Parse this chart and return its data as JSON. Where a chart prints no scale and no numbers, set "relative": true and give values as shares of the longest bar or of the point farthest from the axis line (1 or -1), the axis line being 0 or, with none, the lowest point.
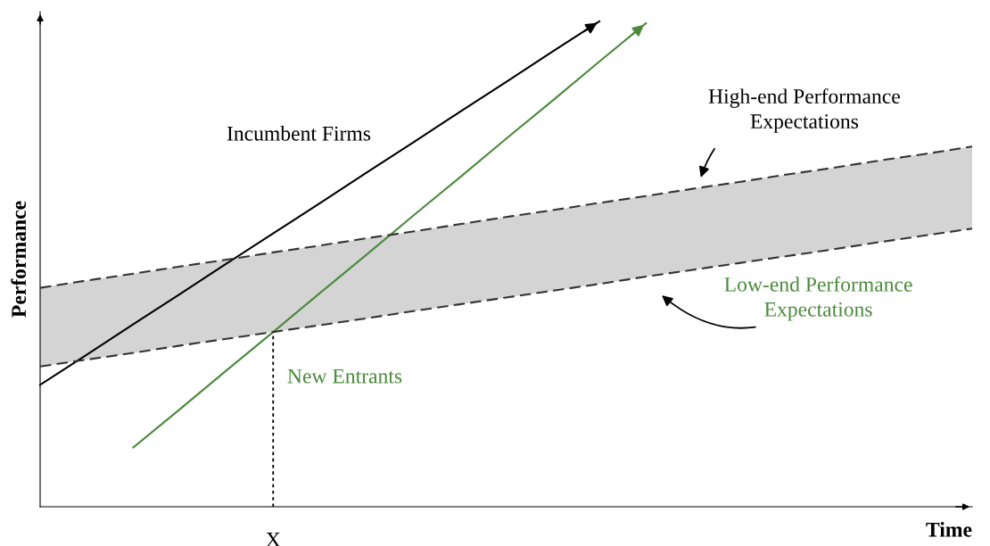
{
  "chart_data": {
    "type": "line",
    "relative": true,
    "xlabel": "Time",
    "ylabel": "Performance",
    "categories": [
      null,
      null,
      null,
      null,
      null,
      null,
      null,
      null,
      null,
      null,
      null,
      null,
      null,
      null,
      null,
      null,
      null,
      null,
      null,
      null,
      null
    ],
    "series": [
      {
        "name": "Incumbent Firms",
        "color": "#000000",
        "line_style": "solid",
        "values": [
          0.251,
          0.313,
          0.376,
          0.438,
          0.501,
          0.563,
          0.625,
          0.688,
          0.75,
          0.813,
          0.875,
          0.938,
          1.0,
          null,
          null,
          null,
          null,
          null,
          null,
          null,
          null
        ]
      },
      {
        "name": "New Entrants",
        "color": "#4a8a3a",
        "line_style": "solid",
        "values": [
          null,
          null,
          0.122,
          0.201,
          0.281,
          0.36,
          0.44,
          0.519,
          0.599,
          0.678,
          0.758,
          0.837,
          0.917,
          0.996,
          null,
          null,
          null,
          null,
          null,
          null,
          null
        ]
      },
      {
        "color": "#333333",
        "line_style": "dashed",
        "values": [
          0.451,
          0.466,
          0.48,
          0.495,
          0.509,
          0.524,
          0.538,
          0.553,
          0.567,
          0.582,
          0.597,
          0.611,
          0.626,
          0.64,
          0.655,
          0.669,
          0.684,
          0.698,
          0.713,
          0.727,
          0.742
        ]
      },
      {
        "color": "#333333",
        "line_style": "dashed",
        "values": [
          0.289,
          0.303,
          0.317,
          0.332,
          0.346,
          0.36,
          0.374,
          0.388,
          0.403,
          0.417,
          0.431,
          0.445,
          0.459,
          0.474,
          0.488,
          0.502,
          0.516,
          0.53,
          0.545,
          0.559,
          0.573
        ],
        "lower": [
          0.289,
          0.303,
          0.317,
          0.332,
          0.346,
          0.36,
          0.374,
          0.388,
          0.403,
          0.417,
          0.431,
          0.445,
          0.459,
          0.474,
          0.488,
          0.502,
          0.516,
          0.53,
          0.545,
          0.559,
          0.573
        ],
        "upper": [
          0.451,
          0.466,
          0.48,
          0.495,
          0.509,
          0.524,
          0.538,
          0.553,
          0.567,
          0.582,
          0.597,
          0.611,
          0.626,
          0.64,
          0.655,
          0.669,
          0.684,
          0.698,
          0.713,
          0.727,
          0.742
        ]
      }
    ],
    "annotations": [
      "High-end Performance\nExpectations",
      "Low-end Performance\nExpectations",
      "X"
    ]
  }
}
